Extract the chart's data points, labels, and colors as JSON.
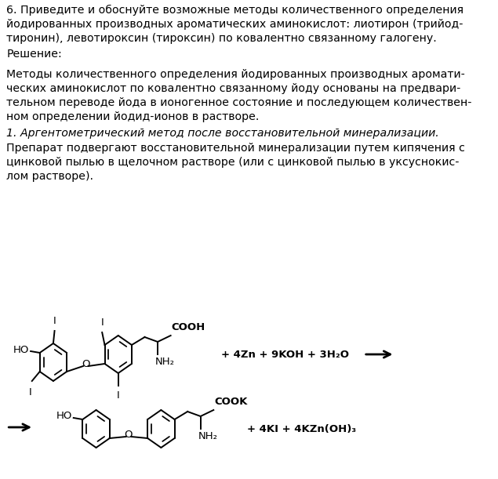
{
  "title_text": "6. Приведите и обоснуйте возможные методы количественного определения\nйодированных производных ароматических аминокислот: лиотирон (трийод-\nтиронин), левотироксин (тироксин) по ковалентно связанному галогену.",
  "solution_label": "Решение:",
  "body_text": "Методы количественного определения йодированных производных аромати-\nческих аминокислот по ковалентно связанному йоду основаны на предвари-\nтельном переводе йода в ионогенное состояние и последующем количествен-\nном определении йодид-ионов в растворе.",
  "italic_text": "1. Аргентометрический метод после восстановительной минерализации.",
  "description_text": "Препарат подвергают восстановительной минерализации путем кипячения с\nцинковой пылью в щелочном растворе (или с цинковой пылью в уксуснокис-\nлом растворе).",
  "reagents_top": "+ 4Zn + 9KOH + 3H₂O",
  "products_bottom": "+ 4KI + 4KZn(OH)₃",
  "bg_color": "#ffffff",
  "text_color": "#000000",
  "font_size_body": 10.2
}
